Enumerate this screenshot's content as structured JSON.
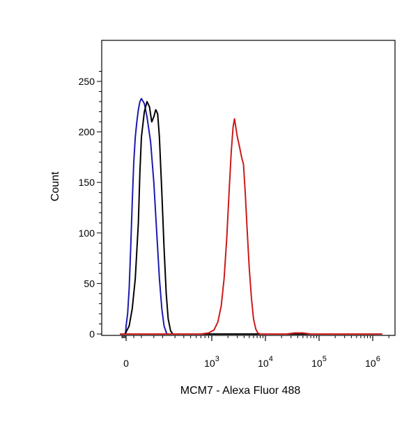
{
  "chart_data": {
    "type": "line",
    "title": "",
    "xlabel": "MCM7 - Alexa Fluor 488",
    "ylabel": "Count",
    "x_scale": "biexponential",
    "ylim": [
      0,
      275
    ],
    "y_ticks": [
      0,
      50,
      100,
      150,
      200,
      250
    ],
    "x_ticks": [
      {
        "value": 0,
        "base": "0",
        "exp": ""
      },
      {
        "value": 1000,
        "base": "10",
        "exp": "3"
      },
      {
        "value": 10000,
        "base": "10",
        "exp": "4"
      },
      {
        "value": 100000,
        "base": "10",
        "exp": "5"
      },
      {
        "value": 1000000,
        "base": "10",
        "exp": "6"
      }
    ],
    "grid": false,
    "legend": "none",
    "series": [
      {
        "color": "#1a1ab0",
        "points": [
          [
            -300,
            0
          ],
          [
            -60,
            0
          ],
          [
            -20,
            2
          ],
          [
            0,
            8
          ],
          [
            10,
            20
          ],
          [
            20,
            45
          ],
          [
            30,
            85
          ],
          [
            40,
            130
          ],
          [
            50,
            170
          ],
          [
            60,
            195
          ],
          [
            70,
            210
          ],
          [
            80,
            222
          ],
          [
            90,
            230
          ],
          [
            100,
            233
          ],
          [
            110,
            228
          ],
          [
            120,
            215
          ],
          [
            135,
            190
          ],
          [
            150,
            150
          ],
          [
            165,
            100
          ],
          [
            180,
            55
          ],
          [
            195,
            25
          ],
          [
            210,
            8
          ],
          [
            230,
            0
          ],
          [
            1500000,
            0
          ]
        ]
      },
      {
        "color": "#000000",
        "points": [
          [
            -300,
            0
          ],
          [
            -30,
            0
          ],
          [
            0,
            2
          ],
          [
            20,
            8
          ],
          [
            40,
            25
          ],
          [
            60,
            55
          ],
          [
            80,
            110
          ],
          [
            90,
            160
          ],
          [
            100,
            195
          ],
          [
            110,
            220
          ],
          [
            120,
            230
          ],
          [
            130,
            225
          ],
          [
            140,
            210
          ],
          [
            150,
            215
          ],
          [
            160,
            222
          ],
          [
            170,
            218
          ],
          [
            180,
            195
          ],
          [
            195,
            140
          ],
          [
            210,
            85
          ],
          [
            225,
            40
          ],
          [
            240,
            15
          ],
          [
            260,
            3
          ],
          [
            280,
            0
          ],
          [
            1500000,
            0
          ]
        ]
      },
      {
        "color": "#cc1a1a",
        "points": [
          [
            -300,
            0
          ],
          [
            700,
            0
          ],
          [
            900,
            1
          ],
          [
            1100,
            4
          ],
          [
            1300,
            12
          ],
          [
            1500,
            28
          ],
          [
            1700,
            55
          ],
          [
            1900,
            95
          ],
          [
            2100,
            140
          ],
          [
            2300,
            180
          ],
          [
            2500,
            205
          ],
          [
            2650,
            213
          ],
          [
            2800,
            205
          ],
          [
            3000,
            195
          ],
          [
            3300,
            185
          ],
          [
            3600,
            175
          ],
          [
            3900,
            168
          ],
          [
            4200,
            140
          ],
          [
            4600,
            100
          ],
          [
            5000,
            65
          ],
          [
            5500,
            35
          ],
          [
            6000,
            15
          ],
          [
            6600,
            5
          ],
          [
            7200,
            1
          ],
          [
            8000,
            0
          ],
          [
            25000,
            0
          ],
          [
            35000,
            1
          ],
          [
            50000,
            1
          ],
          [
            70000,
            0
          ],
          [
            1500000,
            0
          ]
        ]
      }
    ]
  }
}
